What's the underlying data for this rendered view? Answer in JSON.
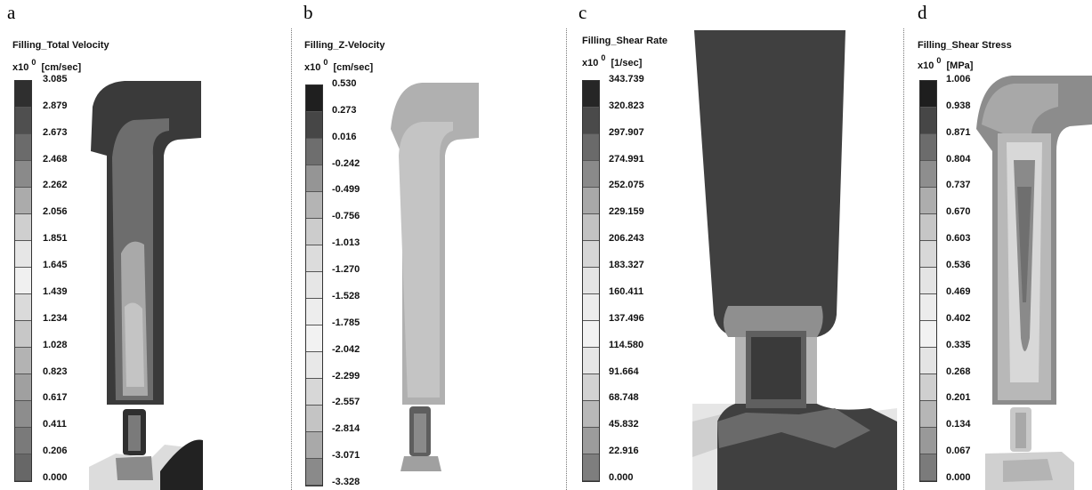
{
  "panels": [
    {
      "letter": "a",
      "title": "Filling_Total Velocity",
      "units": "[cm/sec]",
      "scale_prefix": "x10",
      "scale_exp": "0",
      "ticks": [
        "3.085",
        "2.879",
        "2.673",
        "2.468",
        "2.262",
        "2.056",
        "1.851",
        "1.645",
        "1.439",
        "1.234",
        "1.028",
        "0.823",
        "0.617",
        "0.411",
        "0.206",
        "0.000"
      ],
      "bar_colors": [
        "#2f2f2f",
        "#4f4f4f",
        "#6b6b6b",
        "#8a8a8a",
        "#ababab",
        "#cfcfcf",
        "#e6e6e6",
        "#f0f0f0",
        "#dadada",
        "#c7c7c7",
        "#b3b3b3",
        "#a0a0a0",
        "#8d8d8d",
        "#7a7a7a",
        "#676767"
      ]
    },
    {
      "letter": "b",
      "title": "Filling_Z-Velocity",
      "units": "[cm/sec]",
      "scale_prefix": "x10",
      "scale_exp": "0",
      "ticks": [
        "0.530",
        "0.273",
        "0.016",
        "-0.242",
        "-0.499",
        "-0.756",
        "-1.013",
        "-1.270",
        "-1.528",
        "-1.785",
        "-2.042",
        "-2.299",
        "-2.557",
        "-2.814",
        "-3.071",
        "-3.328"
      ],
      "bar_colors": [
        "#1f1f1f",
        "#464646",
        "#6e6e6e",
        "#959595",
        "#b4b4b4",
        "#cccccc",
        "#dcdcdc",
        "#e6e6e6",
        "#ededed",
        "#f2f2f2",
        "#e8e8e8",
        "#d7d7d7",
        "#c4c4c4",
        "#a9a9a9",
        "#8a8a8a"
      ]
    },
    {
      "letter": "c",
      "title": "Filling_Shear Rate",
      "units": "[1/sec]",
      "scale_prefix": "x10",
      "scale_exp": "0",
      "ticks": [
        "343.739",
        "320.823",
        "297.907",
        "274.991",
        "252.075",
        "229.159",
        "206.243",
        "183.327",
        "160.411",
        "137.496",
        "114.580",
        "91.664",
        "68.748",
        "45.832",
        "22.916",
        "0.000"
      ],
      "bar_colors": [
        "#262626",
        "#4a4a4a",
        "#6a6a6a",
        "#8a8a8a",
        "#a8a8a8",
        "#c2c2c2",
        "#d6d6d6",
        "#e4e4e4",
        "#ececec",
        "#f2f2f2",
        "#e6e6e6",
        "#d2d2d2",
        "#b8b8b8",
        "#9c9c9c",
        "#7e7e7e"
      ]
    },
    {
      "letter": "d",
      "title": "Filling_Shear Stress",
      "units": "[MPa]",
      "scale_prefix": "x10",
      "scale_exp": "0",
      "ticks": [
        "1.006",
        "0.938",
        "0.871",
        "0.804",
        "0.737",
        "0.670",
        "0.603",
        "0.536",
        "0.469",
        "0.402",
        "0.335",
        "0.268",
        "0.201",
        "0.134",
        "0.067",
        "0.000"
      ],
      "bar_colors": [
        "#1e1e1e",
        "#464646",
        "#6c6c6c",
        "#8e8e8e",
        "#adadad",
        "#c6c6c6",
        "#d8d8d8",
        "#e4e4e4",
        "#ececec",
        "#f2f2f2",
        "#e4e4e4",
        "#cfcfcf",
        "#b6b6b6",
        "#999999",
        "#7b7b7b"
      ]
    }
  ]
}
